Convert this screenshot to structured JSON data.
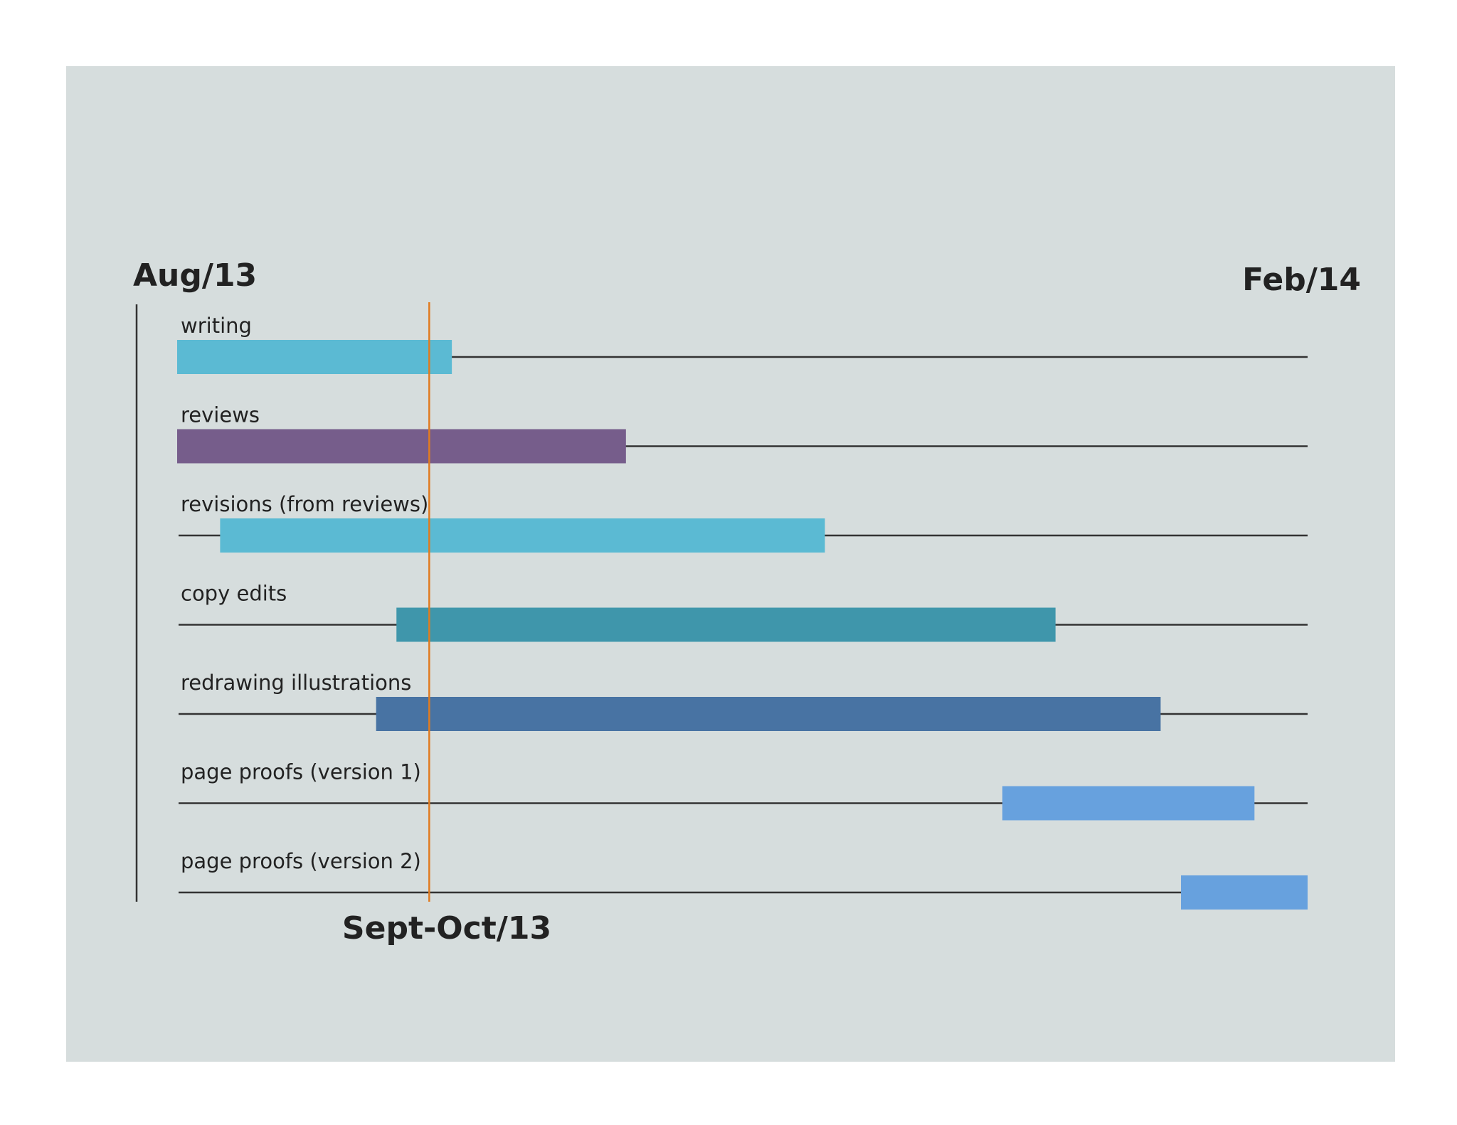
{
  "chart_data": {
    "type": "gantt",
    "start_label": "Aug/13",
    "end_label": "Feb/14",
    "marker_label": "Sept-Oct/13",
    "marker_position": 0.223,
    "marker_color": "#e07b1f",
    "tasks": [
      {
        "label": "writing",
        "start": 0.0,
        "end": 0.243,
        "color": "#5bbad3"
      },
      {
        "label": "reviews",
        "start": 0.0,
        "end": 0.397,
        "color": "#765d8b"
      },
      {
        "label": "revisions (from reviews)",
        "start": 0.038,
        "end": 0.573,
        "color": "#5bbad3"
      },
      {
        "label": "copy edits",
        "start": 0.194,
        "end": 0.777,
        "color": "#3f96ab"
      },
      {
        "label": "redrawing illustrations",
        "start": 0.176,
        "end": 0.87,
        "color": "#4873a3"
      },
      {
        "label": "page proofs (version 1)",
        "start": 0.73,
        "end": 0.953,
        "color": "#67a1de"
      },
      {
        "label": "page proofs (version 2)",
        "start": 0.888,
        "end": 1.0,
        "color": "#67a1de"
      }
    ]
  }
}
